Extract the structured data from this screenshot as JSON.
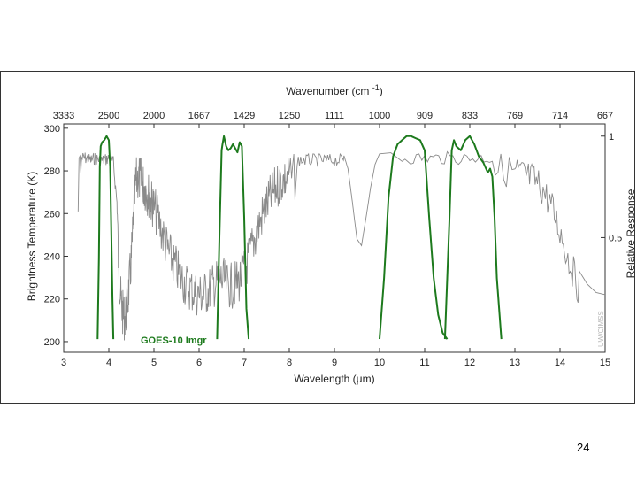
{
  "slide": {
    "page_number": "24"
  },
  "chart_data": {
    "type": "line",
    "title": "",
    "xlabel": "Wavelength (μm)",
    "ylabel": "Brightness Temperature (K)",
    "top_axis_label": "Wavenumber (cm-1)",
    "right_axis_label": "Relative Response",
    "xlim": [
      3,
      15
    ],
    "ylim": [
      195,
      302
    ],
    "x_ticks": [
      "3",
      "4",
      "5",
      "6",
      "7",
      "8",
      "9",
      "10",
      "11",
      "12",
      "13",
      "14",
      "15"
    ],
    "y_ticks": [
      "200",
      "220",
      "240",
      "260",
      "280",
      "300"
    ],
    "top_ticks": [
      {
        "x": 3.0,
        "label": "3333"
      },
      {
        "x": 4.0,
        "label": "2500"
      },
      {
        "x": 5.0,
        "label": "2000"
      },
      {
        "x": 6.0,
        "label": "1667"
      },
      {
        "x": 7.0,
        "label": "1429"
      },
      {
        "x": 8.0,
        "label": "1250"
      },
      {
        "x": 9.0,
        "label": "1111"
      },
      {
        "x": 10.0,
        "label": "1000"
      },
      {
        "x": 11.0,
        "label": "909"
      },
      {
        "x": 12.0,
        "label": "833"
      },
      {
        "x": 13.0,
        "label": "769"
      },
      {
        "x": 14.0,
        "label": "714"
      },
      {
        "x": 15.0,
        "label": "667"
      }
    ],
    "right_ticks": [
      {
        "value": 1,
        "label": "1"
      },
      {
        "value": 0.5,
        "label": "0.5"
      }
    ],
    "right_ylim": [
      -0.065,
      1.06
    ],
    "annotation": "GOES-10 Imgr",
    "watermark": "UW/CIMSS",
    "colors": {
      "spectrum": "#8a8a8a",
      "response": "#1d7a1d",
      "axis": "#333333"
    },
    "spectrum": {
      "x": [
        3.32,
        3.34,
        3.36,
        3.38,
        3.4,
        3.5,
        3.6,
        3.7,
        3.8,
        3.9,
        4.0,
        4.1,
        4.18,
        4.22,
        4.26,
        4.3,
        4.35,
        4.4,
        4.45,
        4.5,
        4.55,
        4.6,
        4.65,
        4.7,
        4.75,
        4.8,
        4.85,
        4.9,
        4.95,
        5.0,
        5.1,
        5.2,
        5.3,
        5.4,
        5.5,
        5.6,
        5.7,
        5.8,
        5.9,
        6.0,
        6.1,
        6.2,
        6.3,
        6.4,
        6.5,
        6.6,
        6.7,
        6.8,
        6.9,
        7.0,
        7.1,
        7.2,
        7.3,
        7.4,
        7.5,
        7.6,
        7.7,
        7.8,
        7.9,
        8.0,
        8.2,
        8.4,
        8.6,
        8.8,
        9.0,
        9.2,
        9.3,
        9.4,
        9.5,
        9.6,
        9.7,
        9.8,
        9.9,
        10.0,
        10.5,
        11.0,
        11.5,
        12.0,
        12.5,
        13.0,
        13.2,
        13.4,
        13.6,
        13.8,
        14.0,
        14.2,
        14.4,
        14.6,
        14.8,
        15.0
      ],
      "y": [
        261,
        286,
        287,
        279,
        289,
        289,
        288,
        289,
        288,
        288,
        289,
        287,
        268,
        245,
        232,
        225,
        222,
        226,
        237,
        250,
        270,
        286,
        288,
        287,
        285,
        283,
        281,
        279,
        276,
        274,
        268,
        261,
        254,
        249,
        245,
        241,
        238,
        236,
        234,
        233,
        233,
        235,
        237,
        239,
        240,
        238,
        237,
        238,
        240,
        244,
        250,
        257,
        264,
        270,
        275,
        279,
        283,
        286,
        287,
        288,
        288,
        288,
        288,
        288,
        288,
        288,
        281,
        265,
        248,
        245,
        258,
        272,
        283,
        288,
        289,
        289,
        289,
        289,
        289,
        288,
        286,
        284,
        280,
        272,
        260,
        246,
        234,
        227,
        223,
        222
      ]
    },
    "response_bands": [
      {
        "name": "band 2",
        "x": [
          3.75,
          3.78,
          3.8,
          3.82,
          3.85,
          3.9,
          3.95,
          4.0,
          4.03,
          4.05,
          4.08,
          4.1
        ],
        "y": [
          0.0,
          0.4,
          0.85,
          0.95,
          0.97,
          0.98,
          1.0,
          0.98,
          0.85,
          0.6,
          0.2,
          0.0
        ]
      },
      {
        "name": "band 3",
        "x": [
          6.4,
          6.45,
          6.5,
          6.52,
          6.55,
          6.6,
          6.65,
          6.7,
          6.75,
          6.8,
          6.85,
          6.9,
          6.95,
          7.0,
          7.05,
          7.1
        ],
        "y": [
          0.0,
          0.5,
          0.93,
          0.96,
          1.0,
          0.95,
          0.93,
          0.94,
          0.96,
          0.94,
          0.92,
          0.97,
          0.95,
          0.6,
          0.15,
          0.0
        ]
      },
      {
        "name": "band 4",
        "x": [
          10.0,
          10.1,
          10.2,
          10.3,
          10.4,
          10.5,
          10.6,
          10.7,
          10.8,
          10.9,
          11.0,
          11.1,
          11.2,
          11.3,
          11.4,
          11.5
        ],
        "y": [
          0.0,
          0.3,
          0.7,
          0.9,
          0.96,
          0.98,
          1.0,
          1.0,
          0.99,
          0.98,
          0.93,
          0.6,
          0.3,
          0.12,
          0.03,
          0.0
        ]
      },
      {
        "name": "band 5",
        "x": [
          11.45,
          11.55,
          11.6,
          11.65,
          11.7,
          11.8,
          11.9,
          12.0,
          12.1,
          12.2,
          12.3,
          12.4,
          12.45,
          12.5,
          12.55,
          12.6,
          12.7
        ],
        "y": [
          0.0,
          0.6,
          0.93,
          0.98,
          0.95,
          0.93,
          0.98,
          1.0,
          0.96,
          0.9,
          0.87,
          0.82,
          0.84,
          0.8,
          0.6,
          0.3,
          0.0
        ]
      }
    ]
  }
}
